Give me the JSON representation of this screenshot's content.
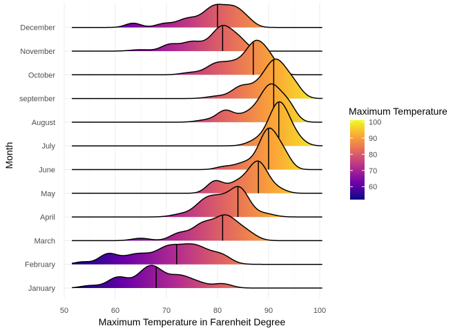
{
  "chart_data": {
    "type": "ridgeline",
    "xlabel": "Maximum Temperature in Farenheit Degree",
    "ylabel": "Month",
    "xlim": [
      50,
      100
    ],
    "x_ticks": [
      50,
      60,
      70,
      80,
      90,
      100
    ],
    "grid": true,
    "legend": {
      "title": "Maximum Temperature",
      "position": "right",
      "ticks": [
        60,
        70,
        80,
        90,
        100
      ],
      "range": [
        52,
        101
      ],
      "colors": [
        "#0d0887",
        "#6a00a8",
        "#b12a90",
        "#e16462",
        "#fca636",
        "#f0f921"
      ]
    },
    "series": [
      {
        "month": "January",
        "median": 68,
        "peaks": [
          {
            "x": 55,
            "h": 0.1,
            "w": 1.8
          },
          {
            "x": 60.5,
            "h": 0.45,
            "w": 2.0
          },
          {
            "x": 67,
            "h": 0.95,
            "w": 2.4
          },
          {
            "x": 72.5,
            "h": 0.45,
            "w": 2.0
          },
          {
            "x": 76,
            "h": 0.22,
            "w": 2.0
          },
          {
            "x": 81,
            "h": 0.18,
            "w": 1.8
          }
        ]
      },
      {
        "month": "February",
        "median": 72,
        "peaks": [
          {
            "x": 53.5,
            "h": 0.1,
            "w": 1.5
          },
          {
            "x": 58.5,
            "h": 0.4,
            "w": 1.8
          },
          {
            "x": 64.5,
            "h": 0.45,
            "w": 3.0
          },
          {
            "x": 70,
            "h": 0.4,
            "w": 2.0
          },
          {
            "x": 75,
            "h": 0.85,
            "w": 3.5
          },
          {
            "x": 81,
            "h": 0.25,
            "w": 1.8
          }
        ]
      },
      {
        "month": "March",
        "median": 81,
        "peaks": [
          {
            "x": 65,
            "h": 0.1,
            "w": 1.8
          },
          {
            "x": 72.5,
            "h": 0.3,
            "w": 1.8
          },
          {
            "x": 77,
            "h": 0.65,
            "w": 2.0
          },
          {
            "x": 81.5,
            "h": 1.0,
            "w": 2.2
          },
          {
            "x": 85.5,
            "h": 0.35,
            "w": 2.0
          }
        ]
      },
      {
        "month": "April",
        "median": 84,
        "peaks": [
          {
            "x": 73,
            "h": 0.12,
            "w": 2.0
          },
          {
            "x": 77.5,
            "h": 0.6,
            "w": 2.0
          },
          {
            "x": 81,
            "h": 0.7,
            "w": 2.2
          },
          {
            "x": 84.5,
            "h": 1.05,
            "w": 1.8
          },
          {
            "x": 89,
            "h": 0.15,
            "w": 2.0
          }
        ]
      },
      {
        "month": "May",
        "median": 88,
        "peaks": [
          {
            "x": 79.5,
            "h": 0.5,
            "w": 1.6
          },
          {
            "x": 84,
            "h": 0.45,
            "w": 2.0
          },
          {
            "x": 88,
            "h": 1.3,
            "w": 1.9
          },
          {
            "x": 92,
            "h": 0.15,
            "w": 1.6
          }
        ]
      },
      {
        "month": "June",
        "median": 90,
        "peaks": [
          {
            "x": 81,
            "h": 0.1,
            "w": 1.5
          },
          {
            "x": 85.5,
            "h": 0.3,
            "w": 2.2
          },
          {
            "x": 90,
            "h": 1.65,
            "w": 1.8
          },
          {
            "x": 93,
            "h": 0.55,
            "w": 1.5
          }
        ]
      },
      {
        "month": "July",
        "median": 92,
        "peaks": [
          {
            "x": 88,
            "h": 0.25,
            "w": 2.0
          },
          {
            "x": 92,
            "h": 1.75,
            "w": 1.9
          },
          {
            "x": 95,
            "h": 0.35,
            "w": 1.8
          }
        ]
      },
      {
        "month": "August",
        "median": 91,
        "peaks": [
          {
            "x": 78,
            "h": 0.1,
            "w": 2.0
          },
          {
            "x": 81.5,
            "h": 0.45,
            "w": 1.6
          },
          {
            "x": 86,
            "h": 0.35,
            "w": 2.2
          },
          {
            "x": 90.5,
            "h": 1.55,
            "w": 2.1
          },
          {
            "x": 94,
            "h": 0.55,
            "w": 1.5
          }
        ]
      },
      {
        "month": "september",
        "median": 91,
        "peaks": [
          {
            "x": 80,
            "h": 0.1,
            "w": 2.0
          },
          {
            "x": 84.5,
            "h": 0.45,
            "w": 1.8
          },
          {
            "x": 88,
            "h": 0.4,
            "w": 2.0
          },
          {
            "x": 91.5,
            "h": 1.55,
            "w": 2.1
          },
          {
            "x": 95,
            "h": 0.45,
            "w": 1.6
          }
        ]
      },
      {
        "month": "October",
        "median": 87,
        "peaks": [
          {
            "x": 75,
            "h": 0.1,
            "w": 2.0
          },
          {
            "x": 79.5,
            "h": 0.4,
            "w": 1.8
          },
          {
            "x": 83,
            "h": 0.45,
            "w": 2.0
          },
          {
            "x": 87.5,
            "h": 1.35,
            "w": 2.0
          },
          {
            "x": 90.5,
            "h": 0.45,
            "w": 1.6
          }
        ]
      },
      {
        "month": "November",
        "median": 81,
        "peaks": [
          {
            "x": 65,
            "h": 0.06,
            "w": 2.0
          },
          {
            "x": 70.5,
            "h": 0.25,
            "w": 1.6
          },
          {
            "x": 75,
            "h": 0.4,
            "w": 2.2
          },
          {
            "x": 81,
            "h": 1.05,
            "w": 2.1
          },
          {
            "x": 84.5,
            "h": 0.35,
            "w": 1.6
          }
        ]
      },
      {
        "month": "December",
        "median": 80,
        "peaks": [
          {
            "x": 63.5,
            "h": 0.18,
            "w": 1.5
          },
          {
            "x": 69.5,
            "h": 0.15,
            "w": 1.6
          },
          {
            "x": 74,
            "h": 0.35,
            "w": 2.0
          },
          {
            "x": 79.5,
            "h": 0.9,
            "w": 2.3
          },
          {
            "x": 83.5,
            "h": 0.65,
            "w": 1.8
          },
          {
            "x": 86,
            "h": 0.2,
            "w": 1.5
          }
        ]
      }
    ]
  }
}
